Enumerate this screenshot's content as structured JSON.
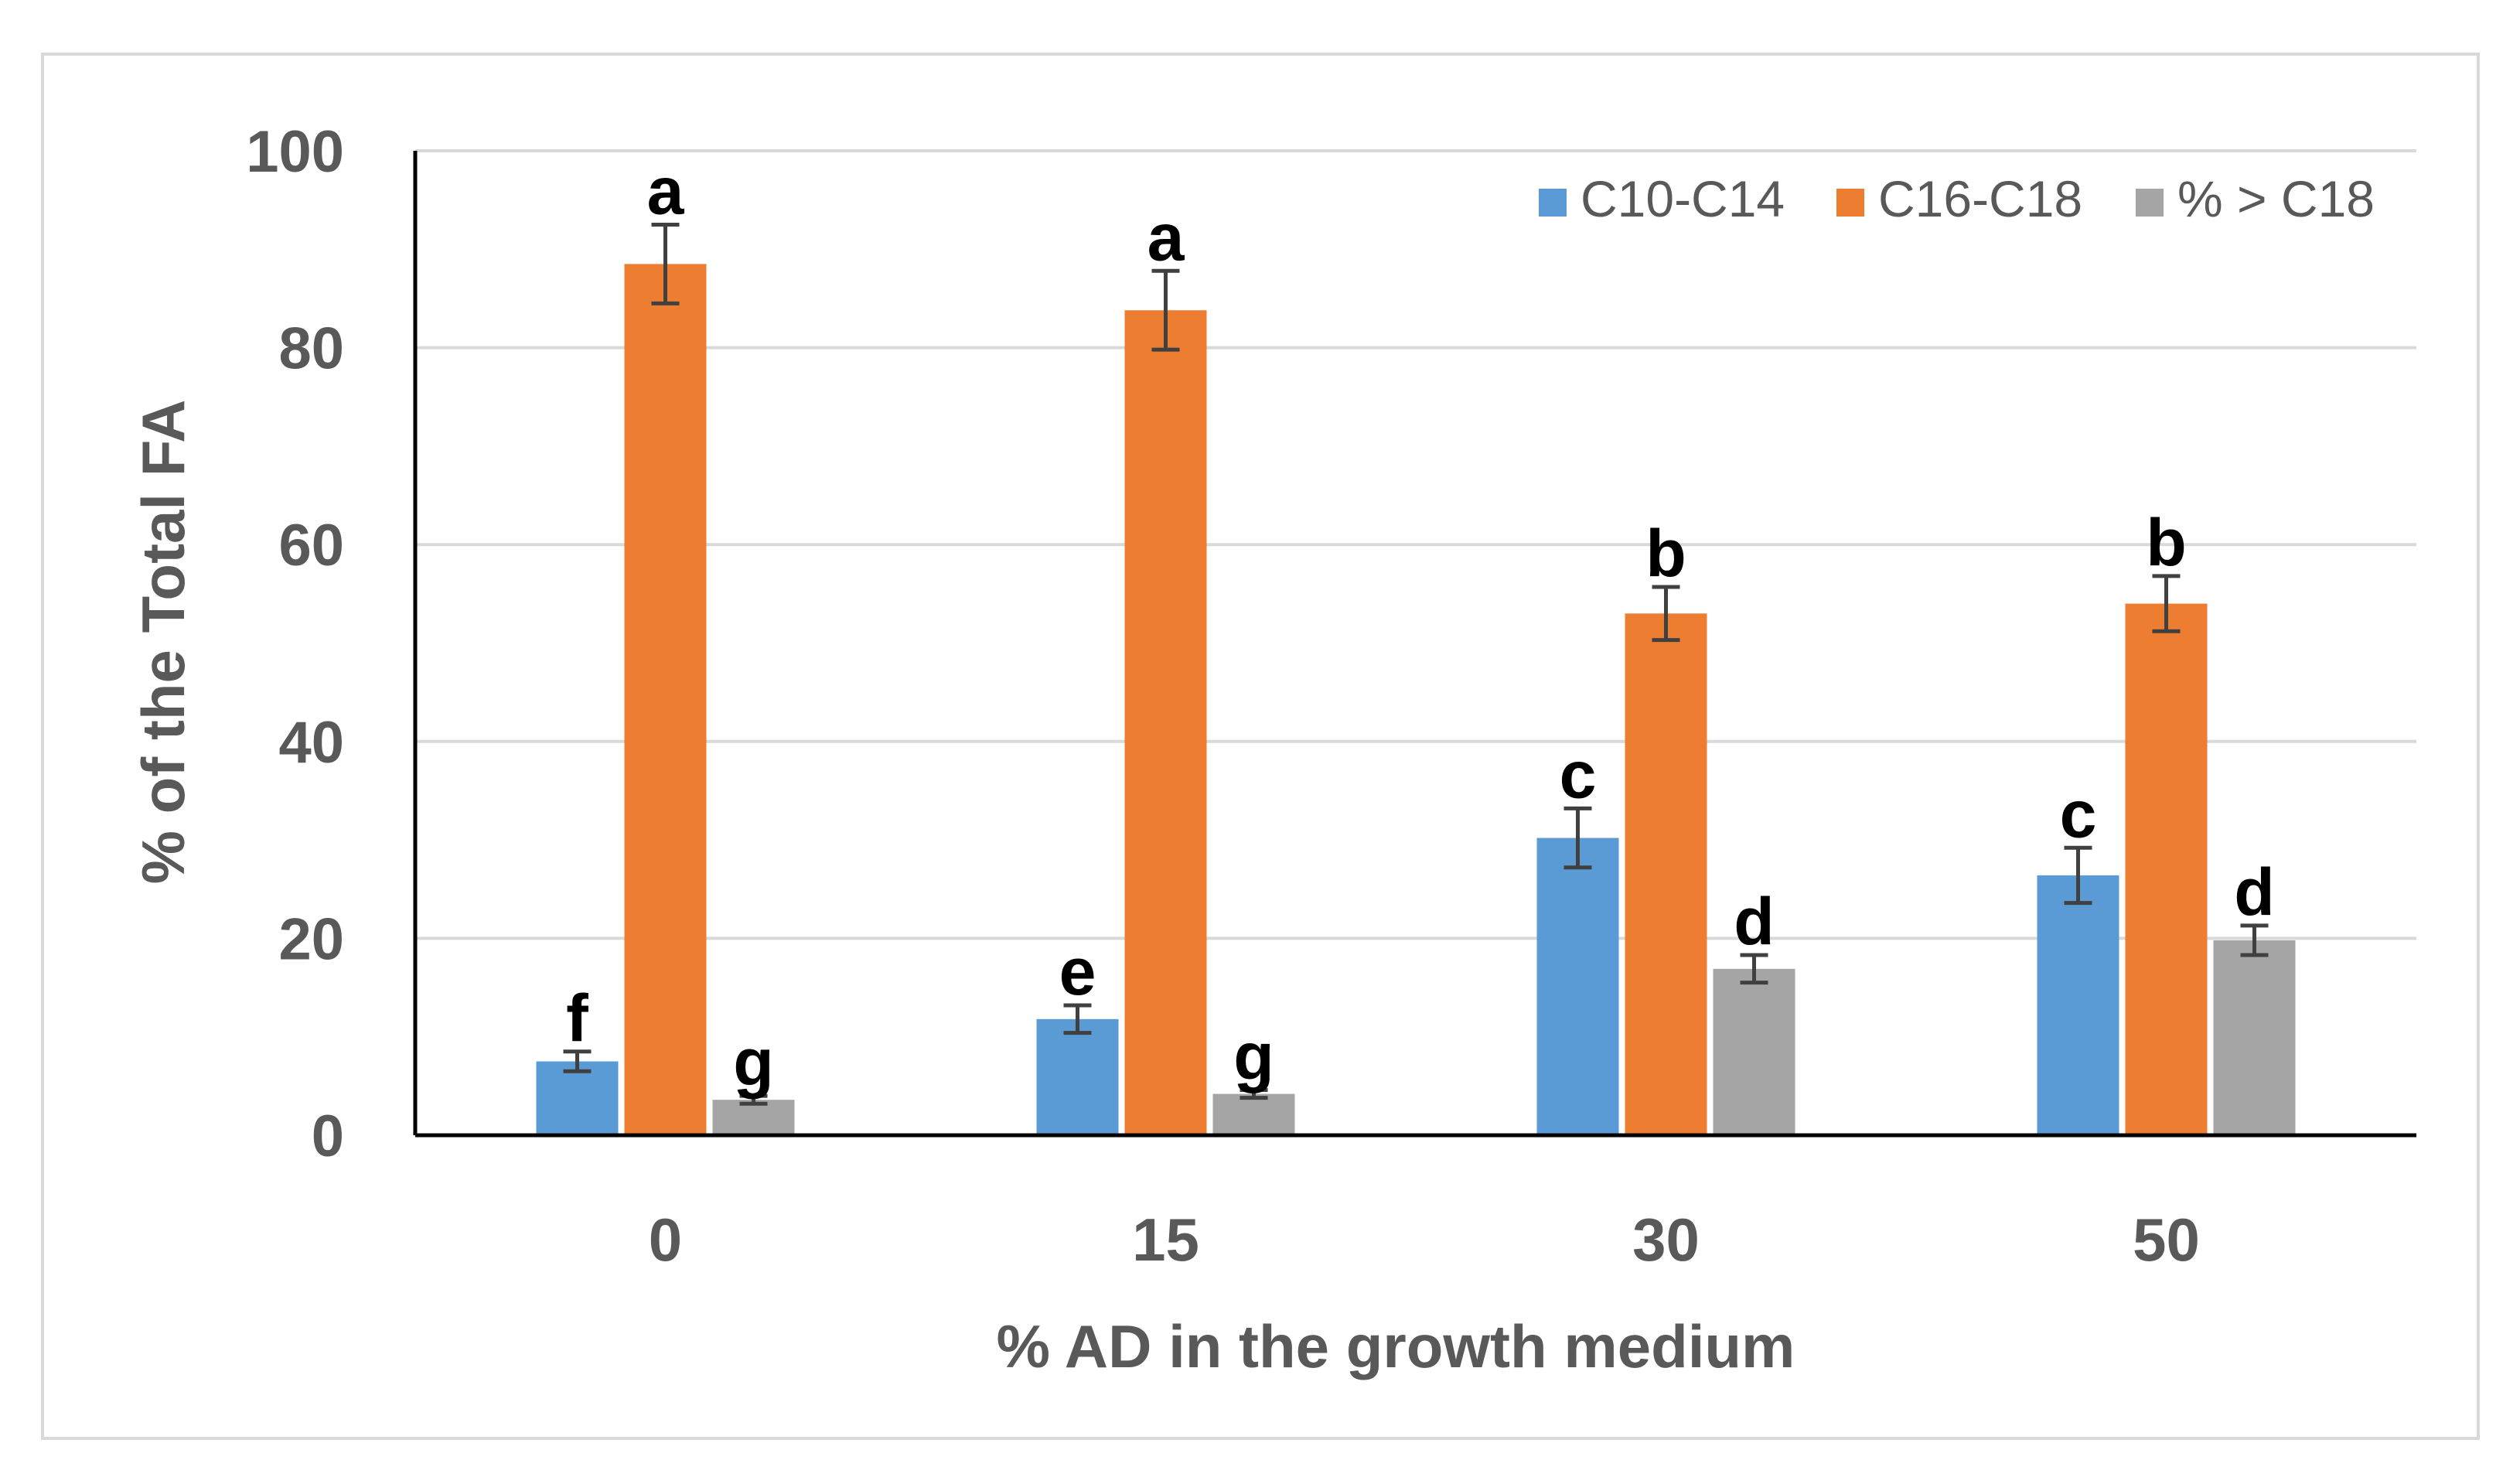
{
  "chart_data": {
    "type": "bar",
    "title": "",
    "xlabel": "% AD in the growth medium",
    "ylabel": "% of the Total FA",
    "categories": [
      "0",
      "15",
      "30",
      "50"
    ],
    "ylim": [
      0,
      100
    ],
    "yticks": [
      "0",
      "20",
      "40",
      "60",
      "80",
      "100"
    ],
    "grid": true,
    "legend_position": "top-right",
    "series": [
      {
        "name": "C10-C14",
        "color": "#5b9bd5",
        "values": [
          7.5,
          11.8,
          30.2,
          26.4
        ],
        "errors": [
          1.0,
          1.4,
          3.0,
          2.8
        ],
        "letters": [
          "f",
          "e",
          "c",
          "c"
        ]
      },
      {
        "name": "C16-C18",
        "color": "#ed7d31",
        "values": [
          88.5,
          83.8,
          53.0,
          54.0
        ],
        "errors": [
          4.0,
          4.0,
          2.7,
          2.8
        ],
        "letters": [
          "a",
          "a",
          "b",
          "b"
        ]
      },
      {
        "name": "% > C18",
        "color": "#a5a5a5",
        "values": [
          3.6,
          4.2,
          16.9,
          19.8
        ],
        "errors": [
          0.4,
          0.4,
          1.4,
          1.5
        ],
        "letters": [
          "g",
          "g",
          "d",
          "d"
        ]
      }
    ]
  }
}
